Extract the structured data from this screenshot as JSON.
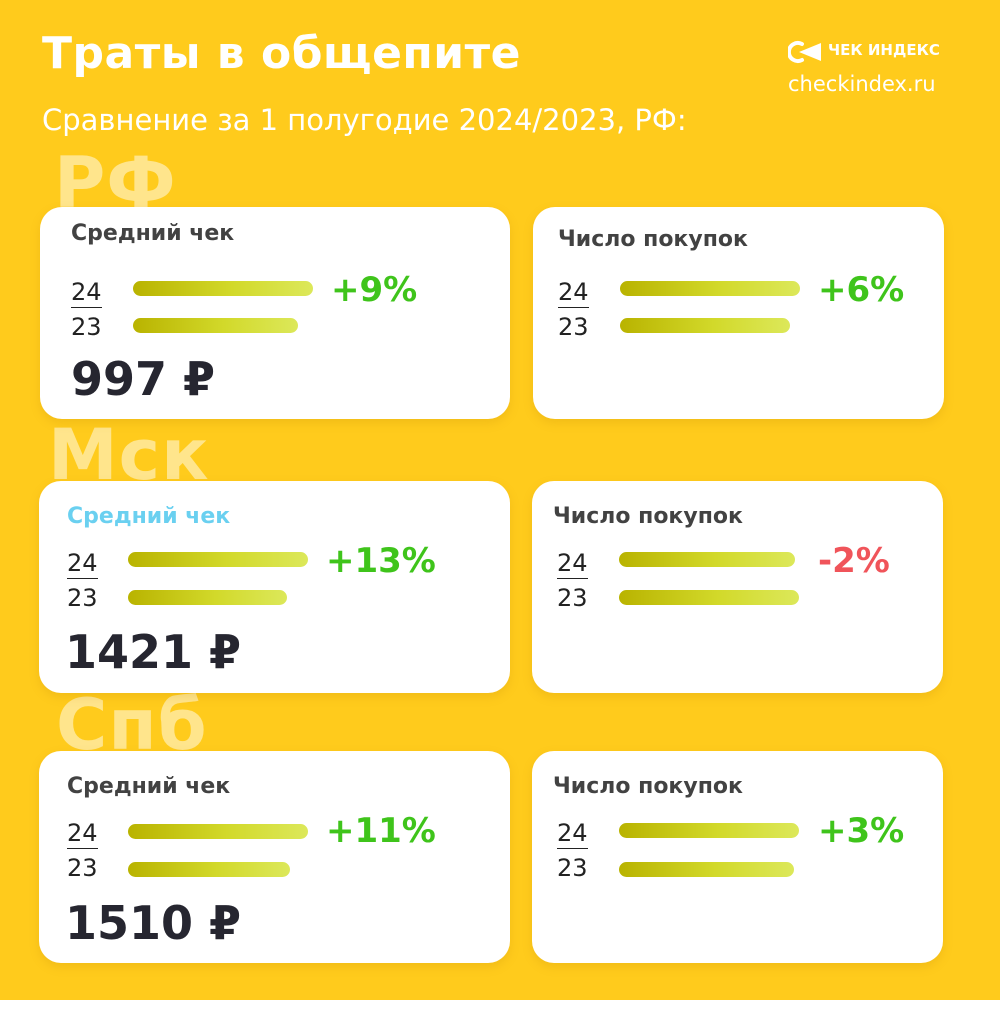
{
  "header": {
    "title": "Траты в общепите",
    "subtitle": "Сравнение за 1 полугодие 2024/2023, РФ:",
    "brand_name": "ЧЕК ИНДЕКС",
    "brand_url": "checkindex.ru"
  },
  "colors": {
    "background": "#ffcb1c",
    "positive": "#3fc41b",
    "negative": "#f0545a",
    "highlight_title": "#6ad0f0",
    "bar": "#c9c500"
  },
  "year_labels": {
    "current": "24",
    "previous": "23"
  },
  "currency": "₽",
  "chart_data": [
    {
      "type": "bar",
      "region": "РФ",
      "title": "Средний чек",
      "categories": [
        "24",
        "23"
      ],
      "values": [
        997,
        915
      ],
      "change_label": "+9%",
      "value_label": "997 ₽"
    },
    {
      "type": "bar",
      "region": "РФ",
      "title": "Число покупок",
      "categories": [
        "24",
        "23"
      ],
      "values": [
        106,
        100
      ],
      "change_label": "+6%"
    },
    {
      "type": "bar",
      "region": "Мск",
      "title": "Средний чек",
      "categories": [
        "24",
        "23"
      ],
      "values": [
        1421,
        1257
      ],
      "change_label": "+13%",
      "value_label": "1421 ₽"
    },
    {
      "type": "bar",
      "region": "Мск",
      "title": "Число покупок",
      "categories": [
        "24",
        "23"
      ],
      "values": [
        98,
        100
      ],
      "change_label": "-2%"
    },
    {
      "type": "bar",
      "region": "Спб",
      "title": "Средний чек",
      "categories": [
        "24",
        "23"
      ],
      "values": [
        1510,
        1360
      ],
      "change_label": "+11%",
      "value_label": "1510 ₽"
    },
    {
      "type": "bar",
      "region": "Спб",
      "title": "Число покупок",
      "categories": [
        "24",
        "23"
      ],
      "values": [
        103,
        100
      ],
      "change_label": "+3%"
    }
  ]
}
